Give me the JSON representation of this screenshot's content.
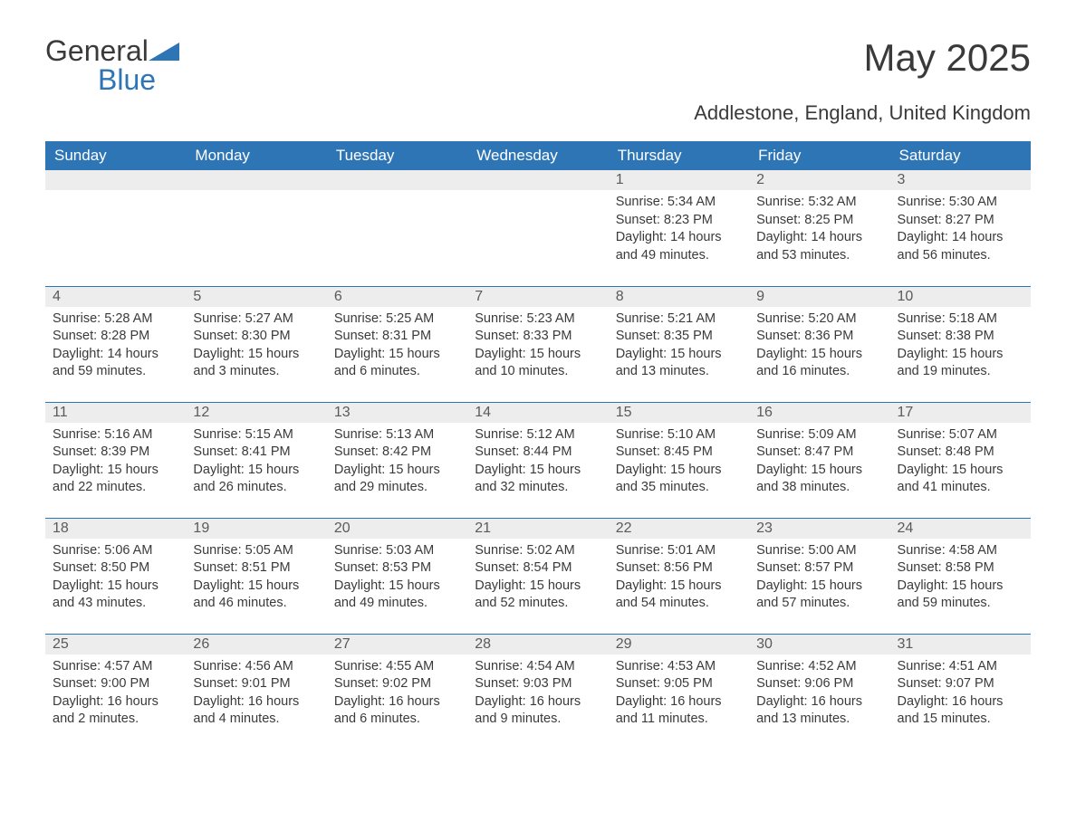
{
  "brand": {
    "part1": "General",
    "part2": "Blue",
    "text_color": "#3a3a3a",
    "accent_color": "#2e75b6"
  },
  "title": "May 2025",
  "location": "Addlestone, England, United Kingdom",
  "colors": {
    "header_bg": "#2e75b6",
    "header_text": "#ffffff",
    "daynum_bg": "#ededed",
    "daynum_text": "#5a5a5a",
    "body_text": "#3a3a3a",
    "background": "#ffffff",
    "week_border": "#2e75b6"
  },
  "typography": {
    "title_fontsize": 42,
    "subtitle_fontsize": 22,
    "header_fontsize": 17,
    "daynum_fontsize": 16,
    "content_fontsize": 14.5,
    "font_family": "Segoe UI"
  },
  "weekdays": [
    "Sunday",
    "Monday",
    "Tuesday",
    "Wednesday",
    "Thursday",
    "Friday",
    "Saturday"
  ],
  "weeks": [
    [
      null,
      null,
      null,
      null,
      {
        "n": "1",
        "sr": "Sunrise: 5:34 AM",
        "ss": "Sunset: 8:23 PM",
        "dl": "Daylight: 14 hours and 49 minutes."
      },
      {
        "n": "2",
        "sr": "Sunrise: 5:32 AM",
        "ss": "Sunset: 8:25 PM",
        "dl": "Daylight: 14 hours and 53 minutes."
      },
      {
        "n": "3",
        "sr": "Sunrise: 5:30 AM",
        "ss": "Sunset: 8:27 PM",
        "dl": "Daylight: 14 hours and 56 minutes."
      }
    ],
    [
      {
        "n": "4",
        "sr": "Sunrise: 5:28 AM",
        "ss": "Sunset: 8:28 PM",
        "dl": "Daylight: 14 hours and 59 minutes."
      },
      {
        "n": "5",
        "sr": "Sunrise: 5:27 AM",
        "ss": "Sunset: 8:30 PM",
        "dl": "Daylight: 15 hours and 3 minutes."
      },
      {
        "n": "6",
        "sr": "Sunrise: 5:25 AM",
        "ss": "Sunset: 8:31 PM",
        "dl": "Daylight: 15 hours and 6 minutes."
      },
      {
        "n": "7",
        "sr": "Sunrise: 5:23 AM",
        "ss": "Sunset: 8:33 PM",
        "dl": "Daylight: 15 hours and 10 minutes."
      },
      {
        "n": "8",
        "sr": "Sunrise: 5:21 AM",
        "ss": "Sunset: 8:35 PM",
        "dl": "Daylight: 15 hours and 13 minutes."
      },
      {
        "n": "9",
        "sr": "Sunrise: 5:20 AM",
        "ss": "Sunset: 8:36 PM",
        "dl": "Daylight: 15 hours and 16 minutes."
      },
      {
        "n": "10",
        "sr": "Sunrise: 5:18 AM",
        "ss": "Sunset: 8:38 PM",
        "dl": "Daylight: 15 hours and 19 minutes."
      }
    ],
    [
      {
        "n": "11",
        "sr": "Sunrise: 5:16 AM",
        "ss": "Sunset: 8:39 PM",
        "dl": "Daylight: 15 hours and 22 minutes."
      },
      {
        "n": "12",
        "sr": "Sunrise: 5:15 AM",
        "ss": "Sunset: 8:41 PM",
        "dl": "Daylight: 15 hours and 26 minutes."
      },
      {
        "n": "13",
        "sr": "Sunrise: 5:13 AM",
        "ss": "Sunset: 8:42 PM",
        "dl": "Daylight: 15 hours and 29 minutes."
      },
      {
        "n": "14",
        "sr": "Sunrise: 5:12 AM",
        "ss": "Sunset: 8:44 PM",
        "dl": "Daylight: 15 hours and 32 minutes."
      },
      {
        "n": "15",
        "sr": "Sunrise: 5:10 AM",
        "ss": "Sunset: 8:45 PM",
        "dl": "Daylight: 15 hours and 35 minutes."
      },
      {
        "n": "16",
        "sr": "Sunrise: 5:09 AM",
        "ss": "Sunset: 8:47 PM",
        "dl": "Daylight: 15 hours and 38 minutes."
      },
      {
        "n": "17",
        "sr": "Sunrise: 5:07 AM",
        "ss": "Sunset: 8:48 PM",
        "dl": "Daylight: 15 hours and 41 minutes."
      }
    ],
    [
      {
        "n": "18",
        "sr": "Sunrise: 5:06 AM",
        "ss": "Sunset: 8:50 PM",
        "dl": "Daylight: 15 hours and 43 minutes."
      },
      {
        "n": "19",
        "sr": "Sunrise: 5:05 AM",
        "ss": "Sunset: 8:51 PM",
        "dl": "Daylight: 15 hours and 46 minutes."
      },
      {
        "n": "20",
        "sr": "Sunrise: 5:03 AM",
        "ss": "Sunset: 8:53 PM",
        "dl": "Daylight: 15 hours and 49 minutes."
      },
      {
        "n": "21",
        "sr": "Sunrise: 5:02 AM",
        "ss": "Sunset: 8:54 PM",
        "dl": "Daylight: 15 hours and 52 minutes."
      },
      {
        "n": "22",
        "sr": "Sunrise: 5:01 AM",
        "ss": "Sunset: 8:56 PM",
        "dl": "Daylight: 15 hours and 54 minutes."
      },
      {
        "n": "23",
        "sr": "Sunrise: 5:00 AM",
        "ss": "Sunset: 8:57 PM",
        "dl": "Daylight: 15 hours and 57 minutes."
      },
      {
        "n": "24",
        "sr": "Sunrise: 4:58 AM",
        "ss": "Sunset: 8:58 PM",
        "dl": "Daylight: 15 hours and 59 minutes."
      }
    ],
    [
      {
        "n": "25",
        "sr": "Sunrise: 4:57 AM",
        "ss": "Sunset: 9:00 PM",
        "dl": "Daylight: 16 hours and 2 minutes."
      },
      {
        "n": "26",
        "sr": "Sunrise: 4:56 AM",
        "ss": "Sunset: 9:01 PM",
        "dl": "Daylight: 16 hours and 4 minutes."
      },
      {
        "n": "27",
        "sr": "Sunrise: 4:55 AM",
        "ss": "Sunset: 9:02 PM",
        "dl": "Daylight: 16 hours and 6 minutes."
      },
      {
        "n": "28",
        "sr": "Sunrise: 4:54 AM",
        "ss": "Sunset: 9:03 PM",
        "dl": "Daylight: 16 hours and 9 minutes."
      },
      {
        "n": "29",
        "sr": "Sunrise: 4:53 AM",
        "ss": "Sunset: 9:05 PM",
        "dl": "Daylight: 16 hours and 11 minutes."
      },
      {
        "n": "30",
        "sr": "Sunrise: 4:52 AM",
        "ss": "Sunset: 9:06 PM",
        "dl": "Daylight: 16 hours and 13 minutes."
      },
      {
        "n": "31",
        "sr": "Sunrise: 4:51 AM",
        "ss": "Sunset: 9:07 PM",
        "dl": "Daylight: 16 hours and 15 minutes."
      }
    ]
  ]
}
